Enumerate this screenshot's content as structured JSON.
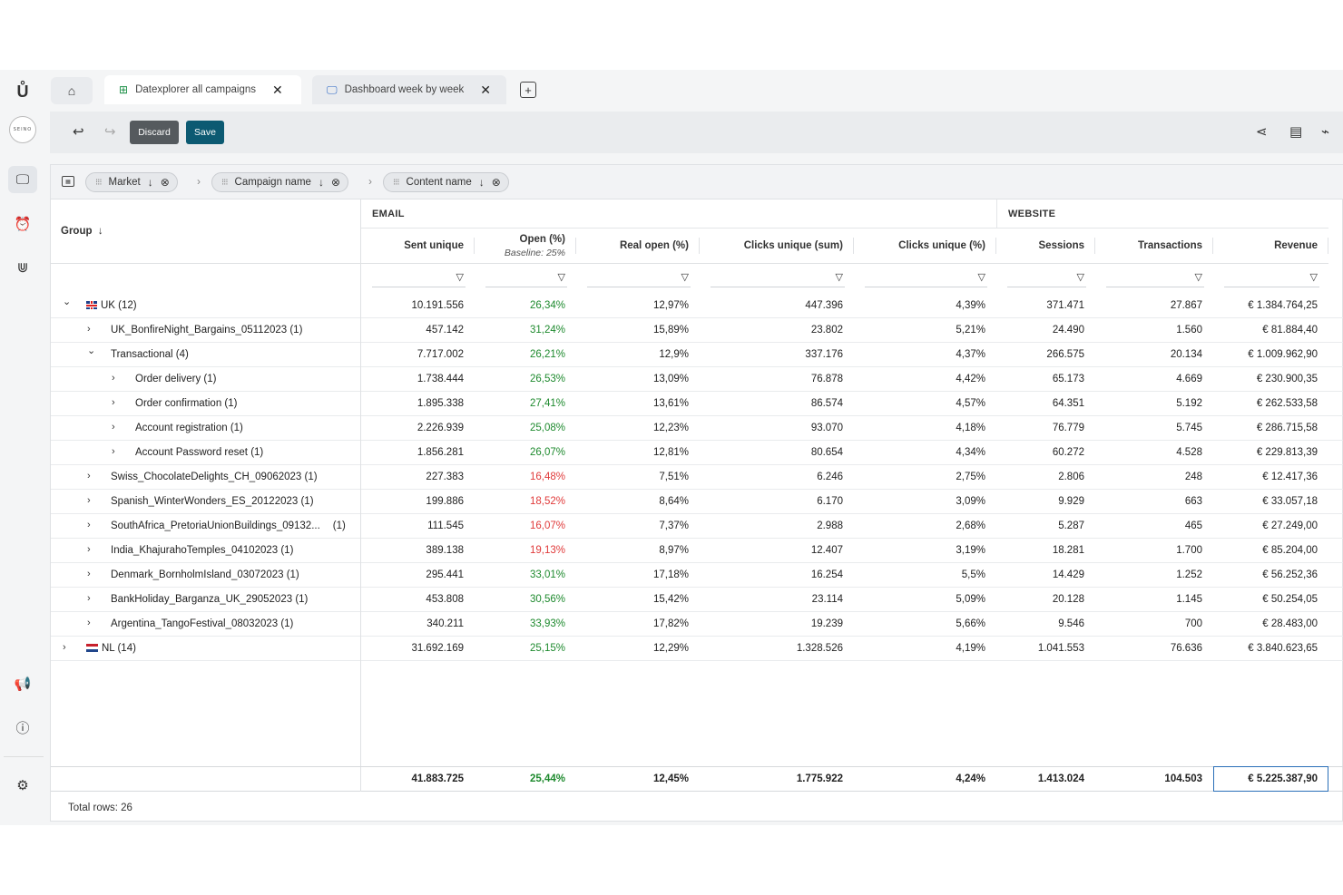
{
  "tabs": [
    {
      "label": "Datexplorer all campaigns",
      "icon": "grid-table-icon",
      "active": true
    },
    {
      "label": "Dashboard week by week",
      "icon": "dashboard-monitor-icon",
      "active": false
    }
  ],
  "avatar_text": "SEINO",
  "toolbar": {
    "discard_label": "Discard",
    "save_label": "Save"
  },
  "groupings": [
    {
      "label": "Market",
      "sort": "↓"
    },
    {
      "label": "Campaign name",
      "sort": "↓"
    },
    {
      "label": "Content name",
      "sort": "↓"
    }
  ],
  "grid": {
    "group_header": "Group",
    "group_sort": "↓",
    "groups": {
      "email": "EMAIL",
      "website": "WEBSITE"
    },
    "columns": {
      "sent": "Sent unique",
      "open": "Open (%)",
      "open_sub": "Baseline: 25%",
      "real_open": "Real open (%)",
      "clicks_sum": "Clicks unique (sum)",
      "clicks_pct": "Clicks unique (%)",
      "sessions": "Sessions",
      "transactions": "Transactions",
      "revenue": "Revenue"
    },
    "rows": [
      {
        "name": "UK (12)",
        "level": 0,
        "expanded": true,
        "flag": "uk",
        "sent": "10.191.556",
        "open": "26,34%",
        "open_color": "green",
        "real_open": "12,97%",
        "clicks_sum": "447.396",
        "clicks_pct": "4,39%",
        "sessions": "371.471",
        "transactions": "27.867",
        "revenue": "€ 1.384.764,25"
      },
      {
        "name": "UK_BonfireNight_Bargains_05112023 (1)",
        "level": 1,
        "expanded": false,
        "sent": "457.142",
        "open": "31,24%",
        "open_color": "green",
        "real_open": "15,89%",
        "clicks_sum": "23.802",
        "clicks_pct": "5,21%",
        "sessions": "24.490",
        "transactions": "1.560",
        "revenue": "€ 81.884,40"
      },
      {
        "name": "Transactional (4)",
        "level": 1,
        "expanded": true,
        "sent": "7.717.002",
        "open": "26,21%",
        "open_color": "green",
        "real_open": "12,9%",
        "clicks_sum": "337.176",
        "clicks_pct": "4,37%",
        "sessions": "266.575",
        "transactions": "20.134",
        "revenue": "€ 1.009.962,90"
      },
      {
        "name": "Order delivery (1)",
        "level": 2,
        "expanded": false,
        "sent": "1.738.444",
        "open": "26,53%",
        "open_color": "green",
        "real_open": "13,09%",
        "clicks_sum": "76.878",
        "clicks_pct": "4,42%",
        "sessions": "65.173",
        "transactions": "4.669",
        "revenue": "€ 230.900,35"
      },
      {
        "name": "Order confirmation (1)",
        "level": 2,
        "expanded": false,
        "sent": "1.895.338",
        "open": "27,41%",
        "open_color": "green",
        "real_open": "13,61%",
        "clicks_sum": "86.574",
        "clicks_pct": "4,57%",
        "sessions": "64.351",
        "transactions": "5.192",
        "revenue": "€ 262.533,58"
      },
      {
        "name": "Account registration (1)",
        "level": 2,
        "expanded": false,
        "sent": "2.226.939",
        "open": "25,08%",
        "open_color": "green",
        "real_open": "12,23%",
        "clicks_sum": "93.070",
        "clicks_pct": "4,18%",
        "sessions": "76.779",
        "transactions": "5.745",
        "revenue": "€ 286.715,58"
      },
      {
        "name": "Account Password reset (1)",
        "level": 2,
        "expanded": false,
        "sent": "1.856.281",
        "open": "26,07%",
        "open_color": "green",
        "real_open": "12,81%",
        "clicks_sum": "80.654",
        "clicks_pct": "4,34%",
        "sessions": "60.272",
        "transactions": "4.528",
        "revenue": "€ 229.813,39"
      },
      {
        "name": "Swiss_ChocolateDelights_CH_09062023 (1)",
        "level": 1,
        "expanded": false,
        "sent": "227.383",
        "open": "16,48%",
        "open_color": "red",
        "real_open": "7,51%",
        "clicks_sum": "6.246",
        "clicks_pct": "2,75%",
        "sessions": "2.806",
        "transactions": "248",
        "revenue": "€ 12.417,36"
      },
      {
        "name": "Spanish_WinterWonders_ES_20122023 (1)",
        "level": 1,
        "expanded": false,
        "sent": "199.886",
        "open": "18,52%",
        "open_color": "red",
        "real_open": "8,64%",
        "clicks_sum": "6.170",
        "clicks_pct": "3,09%",
        "sessions": "9.929",
        "transactions": "663",
        "revenue": "€ 33.057,18"
      },
      {
        "name": "SouthAfrica_PretoriaUnionBuildings_09132...",
        "name_suffix": "(1)",
        "level": 1,
        "expanded": false,
        "sent": "111.545",
        "open": "16,07%",
        "open_color": "red",
        "real_open": "7,37%",
        "clicks_sum": "2.988",
        "clicks_pct": "2,68%",
        "sessions": "5.287",
        "transactions": "465",
        "revenue": "€ 27.249,00"
      },
      {
        "name": "India_KhajurahoTemples_04102023 (1)",
        "level": 1,
        "expanded": false,
        "sent": "389.138",
        "open": "19,13%",
        "open_color": "red",
        "real_open": "8,97%",
        "clicks_sum": "12.407",
        "clicks_pct": "3,19%",
        "sessions": "18.281",
        "transactions": "1.700",
        "revenue": "€ 85.204,00"
      },
      {
        "name": "Denmark_BornholmIsland_03072023 (1)",
        "level": 1,
        "expanded": false,
        "sent": "295.441",
        "open": "33,01%",
        "open_color": "green",
        "real_open": "17,18%",
        "clicks_sum": "16.254",
        "clicks_pct": "5,5%",
        "sessions": "14.429",
        "transactions": "1.252",
        "revenue": "€ 56.252,36"
      },
      {
        "name": "BankHoliday_Barganza_UK_29052023 (1)",
        "level": 1,
        "expanded": false,
        "sent": "453.808",
        "open": "30,56%",
        "open_color": "green",
        "real_open": "15,42%",
        "clicks_sum": "23.114",
        "clicks_pct": "5,09%",
        "sessions": "20.128",
        "transactions": "1.145",
        "revenue": "€ 50.254,05"
      },
      {
        "name": "Argentina_TangoFestival_08032023 (1)",
        "level": 1,
        "expanded": false,
        "sent": "340.211",
        "open": "33,93%",
        "open_color": "green",
        "real_open": "17,82%",
        "clicks_sum": "19.239",
        "clicks_pct": "5,66%",
        "sessions": "9.546",
        "transactions": "700",
        "revenue": "€ 28.483,00"
      },
      {
        "name": "NL (14)",
        "level": 0,
        "expanded": false,
        "flag": "nl",
        "sent": "31.692.169",
        "open": "25,15%",
        "open_color": "green",
        "real_open": "12,29%",
        "clicks_sum": "1.328.526",
        "clicks_pct": "4,19%",
        "sessions": "1.041.553",
        "transactions": "76.636",
        "revenue": "€ 3.840.623,65"
      }
    ],
    "totals": {
      "sent": "41.883.725",
      "open": "25,44%",
      "real_open": "12,45%",
      "clicks_sum": "1.775.922",
      "clicks_pct": "4,24%",
      "sessions": "1.413.024",
      "transactions": "104.503",
      "revenue": "€ 5.225.387,90"
    },
    "total_rows_label": "Total rows: 26"
  },
  "colors": {
    "accent_save": "#0c5a72",
    "positive": "#1e8a2e",
    "negative": "#e03a3a",
    "selection": "#2a6fb8"
  }
}
